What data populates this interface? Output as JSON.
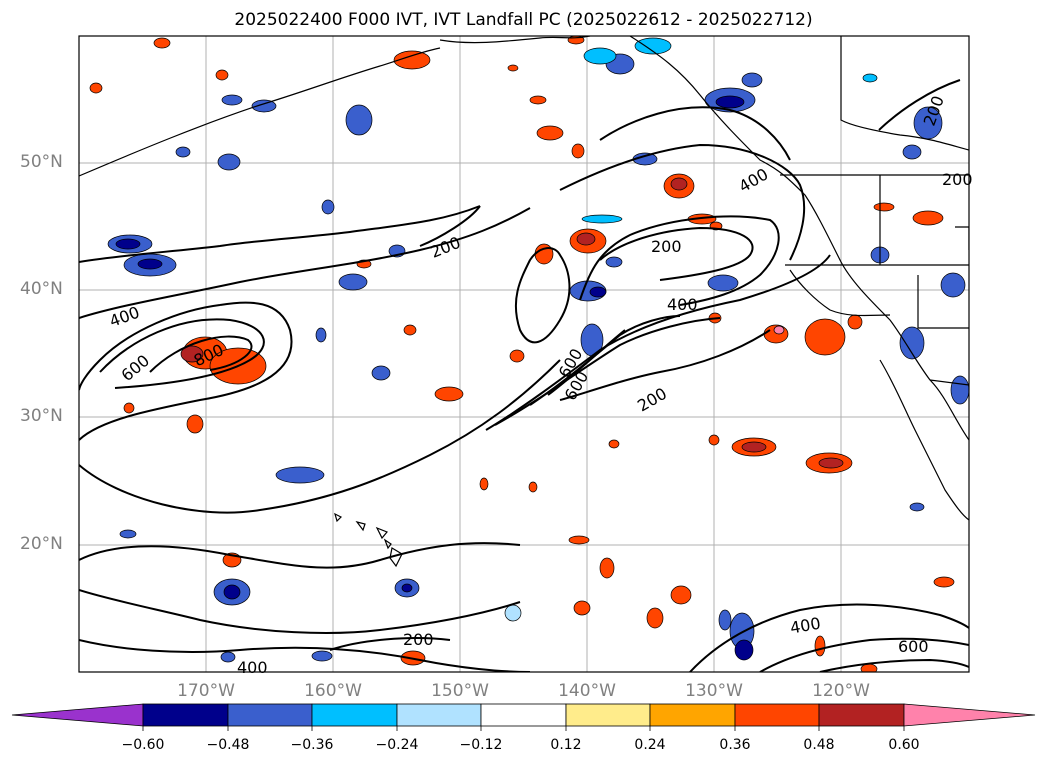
{
  "title": "2025022400 F000 IVT, IVT Landfall PC (2025022612 - 2025022712)",
  "lat_labels": [
    "50°N",
    "40°N",
    "30°N",
    "20°N"
  ],
  "lon_labels": [
    "170°W",
    "160°W",
    "150°W",
    "140°W",
    "130°W",
    "120°W"
  ],
  "contour_labels": [
    "200",
    "200",
    "400",
    "400",
    "600",
    "800",
    "400",
    "600",
    "200",
    "200",
    "400",
    "600",
    "200",
    "200",
    "400",
    "600",
    "200"
  ],
  "colorbar": {
    "ticks": [
      "−0.60",
      "−0.48",
      "−0.36",
      "−0.24",
      "−0.12",
      "0.12",
      "0.24",
      "0.36",
      "0.48",
      "0.60"
    ],
    "colors": [
      "#9a32cd",
      "#00008b",
      "#3a5fcd",
      "#00bfff",
      "#b0e2ff",
      "#ffffff",
      "#ffec8b",
      "#ffa500",
      "#ff4500",
      "#b22222",
      "#ff82ab"
    ]
  },
  "palette": {
    "deep_blue": "#00008b",
    "mid_blue": "#3a5fcd",
    "cyan": "#00bfff",
    "light_cyan": "#b0e2ff",
    "yellow": "#ffec8b",
    "orange": "#ffa500",
    "red_orange": "#ff4500",
    "dark_red": "#b22222",
    "pink": "#ff82ab"
  }
}
